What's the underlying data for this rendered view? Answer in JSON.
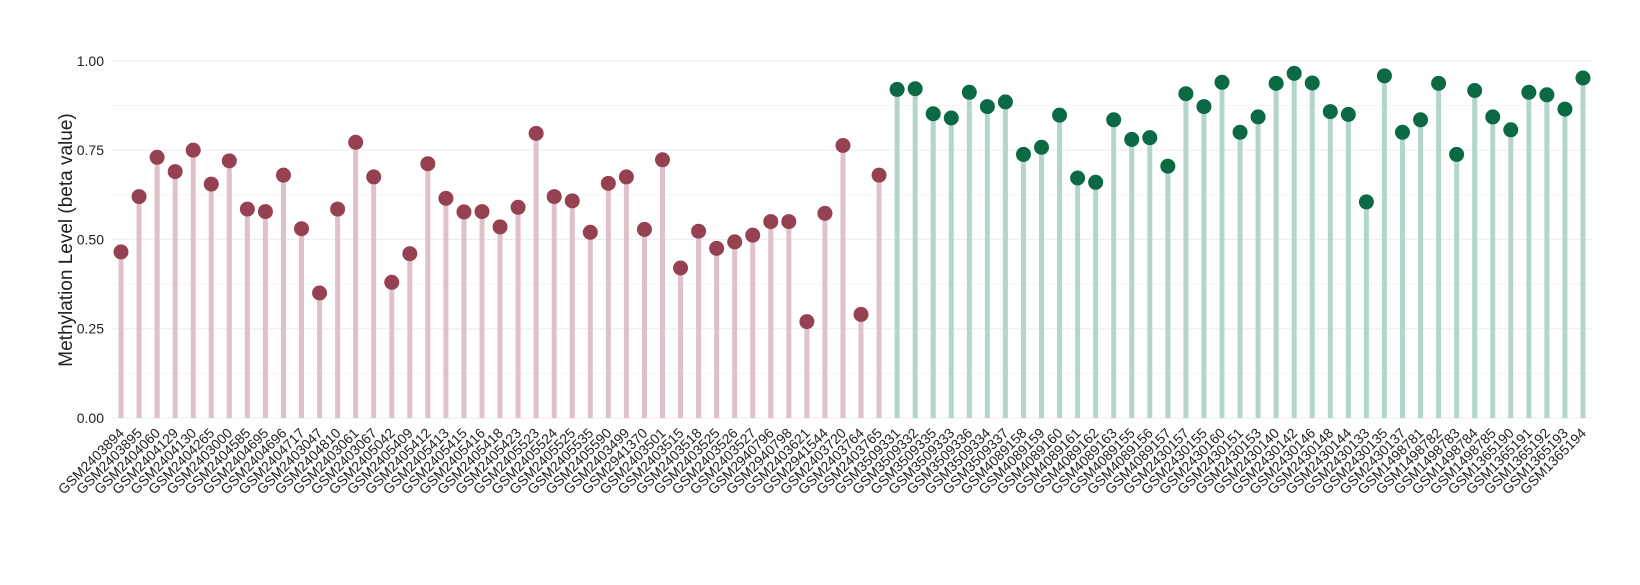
{
  "chart_data": {
    "type": "lollipop",
    "ylabel": "Methylation Level (beta value)",
    "ylim": [
      0,
      1.05
    ],
    "yticks": [
      {
        "value": 0,
        "label": "0.00"
      },
      {
        "value": 0.25,
        "label": "0.25"
      },
      {
        "value": 0.5,
        "label": "0.50"
      },
      {
        "value": 0.75,
        "label": "0.75"
      },
      {
        "value": 1,
        "label": "1.00"
      }
    ],
    "grid": true,
    "series": [
      {
        "color": "#964152",
        "stem_color": "#dfc1c8",
        "categories": [
          "GSM2403894",
          "GSM2403895",
          "GSM2404060",
          "GSM2404129",
          "GSM2404130",
          "GSM2404265",
          "GSM2403000",
          "GSM2404585",
          "GSM2404695",
          "GSM2404696",
          "GSM2404717",
          "GSM2403047",
          "GSM2404810",
          "GSM2403061",
          "GSM2403067",
          "GSM2405042",
          "GSM2405409",
          "GSM2405412",
          "GSM2405413",
          "GSM2405415",
          "GSM2405416",
          "GSM2405418",
          "GSM2405423",
          "GSM2405523",
          "GSM2405524",
          "GSM2405525",
          "GSM2405535",
          "GSM2405590",
          "GSM2403499",
          "GSM2941370",
          "GSM2403501",
          "GSM2403515",
          "GSM2403518",
          "GSM2403525",
          "GSM2403526",
          "GSM2403527",
          "GSM2940796",
          "GSM2940798",
          "GSM2403621",
          "GSM2941544",
          "GSM2403720",
          "GSM2403764",
          "GSM2403765"
        ],
        "values": [
          0.465,
          0.62,
          0.73,
          0.69,
          0.75,
          0.655,
          0.72,
          0.585,
          0.578,
          0.68,
          0.53,
          0.35,
          0.585,
          0.772,
          0.675,
          0.38,
          0.46,
          0.712,
          0.615,
          0.577,
          0.578,
          0.535,
          0.59,
          0.797,
          0.62,
          0.608,
          0.52,
          0.657,
          0.675,
          0.528,
          0.723,
          0.42,
          0.523,
          0.475,
          0.493,
          0.512,
          0.55,
          0.55,
          0.27,
          0.573,
          0.763,
          0.29,
          0.68
        ]
      },
      {
        "color": "#0b6a43",
        "stem_color": "#b4d6c8",
        "categories": [
          "GSM3509331",
          "GSM3509332",
          "GSM3509335",
          "GSM3509333",
          "GSM3509336",
          "GSM3509334",
          "GSM3509337",
          "GSM4089158",
          "GSM4089159",
          "GSM4089160",
          "GSM4089161",
          "GSM4089162",
          "GSM4089163",
          "GSM4089155",
          "GSM4089156",
          "GSM4089157",
          "GSM2430157",
          "GSM2430155",
          "GSM2430160",
          "GSM2430151",
          "GSM2430153",
          "GSM2430140",
          "GSM2430142",
          "GSM2430146",
          "GSM2430148",
          "GSM2430144",
          "GSM2430133",
          "GSM2430135",
          "GSM2430137",
          "GSM1498781",
          "GSM1498782",
          "GSM1498783",
          "GSM1498784",
          "GSM1498785",
          "GSM1365190",
          "GSM1365191",
          "GSM1365192",
          "GSM1365193",
          "GSM1365194"
        ],
        "values": [
          0.92,
          0.922,
          0.852,
          0.84,
          0.912,
          0.872,
          0.885,
          0.738,
          0.758,
          0.848,
          0.672,
          0.66,
          0.835,
          0.78,
          0.785,
          0.705,
          0.908,
          0.872,
          0.94,
          0.8,
          0.843,
          0.937,
          0.965,
          0.938,
          0.858,
          0.85,
          0.605,
          0.958,
          0.8,
          0.835,
          0.937,
          0.738,
          0.917,
          0.843,
          0.807,
          0.912,
          0.905,
          0.865,
          0.952
        ]
      }
    ]
  }
}
